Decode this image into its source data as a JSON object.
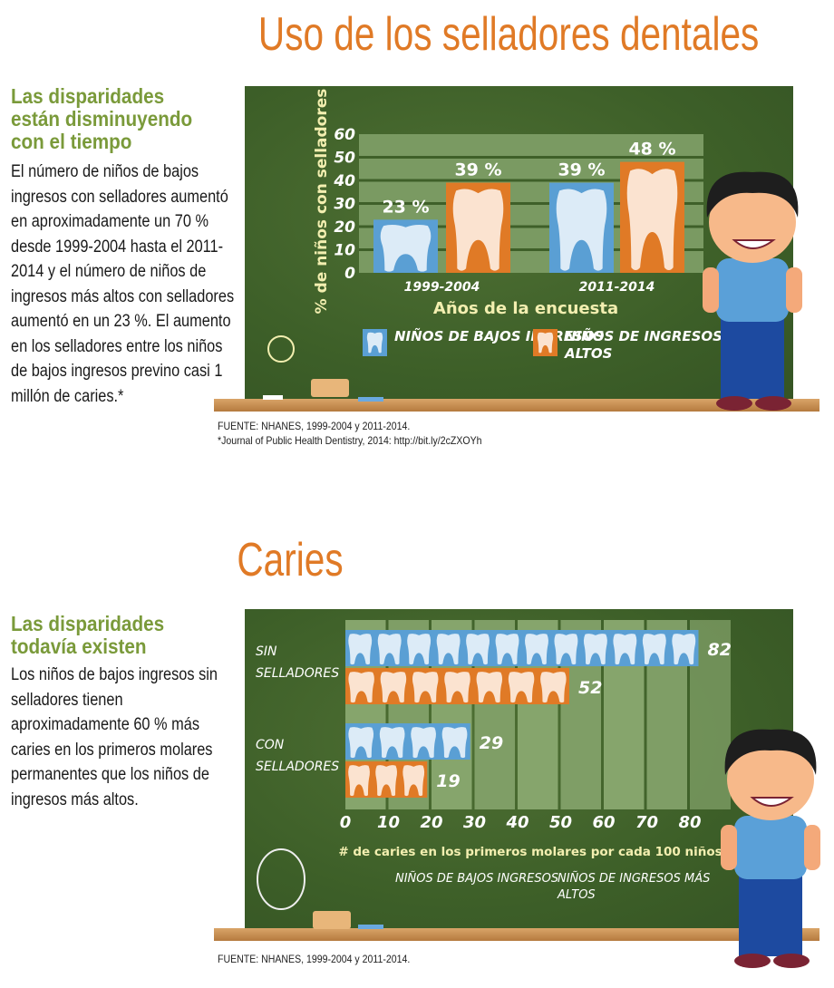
{
  "section1": {
    "title": "Uso de los selladores dentales",
    "heading": "Las disparidades están disminuyendo con el tiempo",
    "body": "El número de niños de bajos ingresos con selladores aumentó en aproximadamente un 70 % desde 1999-2004 hasta el 2011-2014 y el número de niños de ingresos más altos con selladores aumentó en un 23 %. El aumento en los selladores entre los niños de bajos ingresos previno casi 1 millón de caries.*",
    "source": "FUENTE: NHANES, 1999-2004 y 2011-2014.",
    "footnote": "*Journal of Public Health Dentistry, 2014: http://bit.ly/2cZXOYh"
  },
  "section2": {
    "title": "Caries",
    "heading": "Las disparidades todavía existen",
    "body": "Los niños de bajos ingresos sin selladores tienen aproximadamente 60 % más caries en los primeros molares permanentes que los niños de ingresos más altos.",
    "source": "FUENTE: NHANES, 1999-2004 y 2011-2014."
  },
  "colors": {
    "low_income": "#5a9fd4",
    "high_income": "#e07a26",
    "title": "#e07a26",
    "heading": "#7a9a3a",
    "board": "#3f6029"
  },
  "chart_data": [
    {
      "type": "bar",
      "orientation": "vertical",
      "ylabel": "% de niños con selladores",
      "xlabel": "Años de la encuesta",
      "categories": [
        "1999-2004",
        "2011-2014"
      ],
      "ylim": [
        0,
        60
      ],
      "yticks": [
        "0",
        "10",
        "20",
        "30",
        "40",
        "50",
        "60"
      ],
      "grid": true,
      "series": [
        {
          "name": "NIÑOS DE BAJOS INGRESOS",
          "values": [
            23,
            39
          ],
          "labels": [
            "23 %",
            "39 %"
          ],
          "color": "#5a9fd4"
        },
        {
          "name": "NIÑOS DE INGRESOS MÁS ALTOS",
          "values": [
            39,
            48
          ],
          "labels": [
            "39 %",
            "48 %"
          ],
          "color": "#e07a26"
        }
      ],
      "legend": {
        "position": "bottom",
        "items": [
          "NIÑOS DE BAJOS INGRESOS",
          "NIÑOS DE INGRESOS MÁS ALTOS"
        ]
      }
    },
    {
      "type": "bar",
      "orientation": "horizontal",
      "xlabel": "# de caries en los primeros molares por cada 100 niños",
      "categories": [
        "SIN SELLADORES",
        "CON SELLADORES"
      ],
      "xlim": [
        0,
        80
      ],
      "xticks": [
        "0",
        "10",
        "20",
        "30",
        "40",
        "50",
        "60",
        "70",
        "80"
      ],
      "grid": true,
      "series": [
        {
          "name": "NIÑOS DE BAJOS INGRESOS",
          "values": [
            82,
            29
          ],
          "labels": [
            "82",
            "29"
          ],
          "color": "#5a9fd4"
        },
        {
          "name": "NIÑOS DE INGRESOS MÁS ALTOS",
          "values": [
            52,
            19
          ],
          "labels": [
            "52",
            "19"
          ],
          "color": "#e07a26"
        }
      ],
      "legend": {
        "position": "bottom",
        "items": [
          "NIÑOS DE BAJOS INGRESOS",
          "NIÑOS DE INGRESOS MÁS ALTOS"
        ]
      }
    }
  ]
}
